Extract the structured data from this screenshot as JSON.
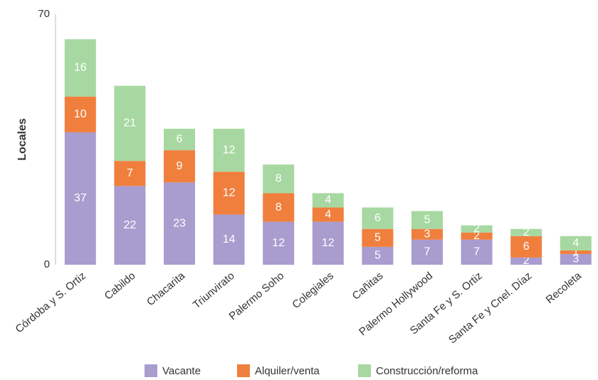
{
  "chart_data": {
    "type": "stacked_bar",
    "ylabel": "Locales",
    "categories": [
      "Córdoba y S. Ortiz",
      "Cabildo",
      "Chacarita",
      "Triunvirato",
      "Palermo Soho",
      "Colegiales",
      "Cañitas",
      "Palermo Hollywood",
      "Santa Fe y S. Ortiz",
      "Santa Fe y Cnel. Díaz",
      "Recoleta"
    ],
    "series": [
      {
        "name": "Vacante",
        "color": "#a99ccf",
        "values": [
          37,
          22,
          23,
          14,
          12,
          12,
          5,
          7,
          7,
          2,
          3
        ]
      },
      {
        "name": "Alquiler/venta",
        "color": "#f07f3e",
        "values": [
          10,
          7,
          9,
          12,
          8,
          4,
          5,
          3,
          2,
          6,
          1
        ]
      },
      {
        "name": "Construcción/reforma",
        "color": "#a7d8a1",
        "values": [
          16,
          21,
          6,
          12,
          8,
          4,
          6,
          5,
          2,
          2,
          4
        ]
      }
    ],
    "ylim": [
      0,
      70
    ],
    "yticks": [
      0,
      70
    ]
  }
}
